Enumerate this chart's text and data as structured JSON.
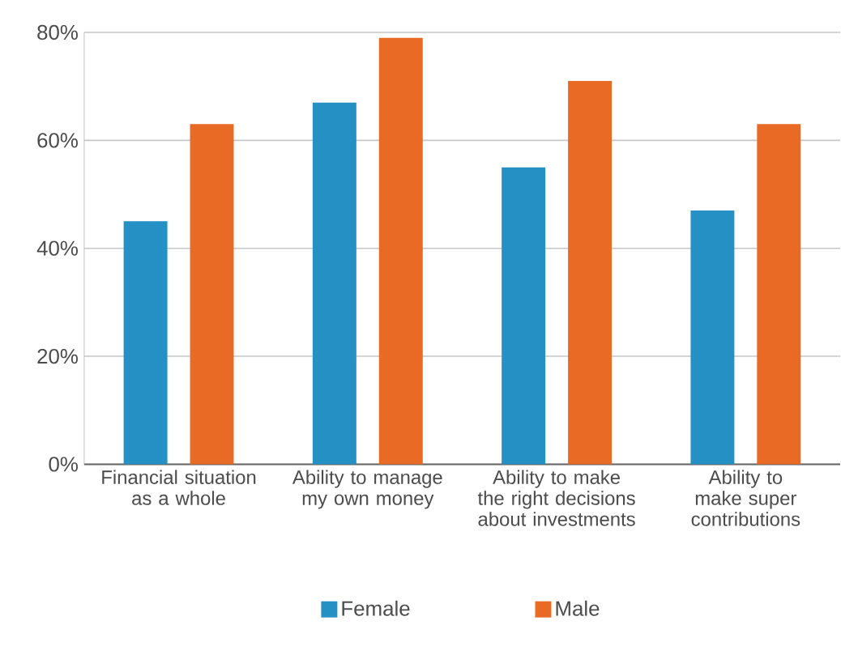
{
  "chart_data": {
    "type": "bar",
    "categories": [
      "Financial situation as a whole",
      "Ability to manage my own money",
      "Ability to make the right decisions about investments",
      "Ability to make super contributions"
    ],
    "series": [
      {
        "name": "Female",
        "color": "#2490c4",
        "values": [
          45,
          67,
          55,
          47
        ]
      },
      {
        "name": "Male",
        "color": "#e86a24",
        "values": [
          63,
          79,
          71,
          63
        ]
      }
    ],
    "ylim": [
      0,
      80
    ],
    "yticks": [
      {
        "value": 0,
        "label": "0%"
      },
      {
        "value": 20,
        "label": "20%"
      },
      {
        "value": 40,
        "label": "40%"
      },
      {
        "value": 60,
        "label": "60%"
      },
      {
        "value": 80,
        "label": "80%"
      }
    ],
    "grid": "y",
    "legend": "bottom"
  }
}
